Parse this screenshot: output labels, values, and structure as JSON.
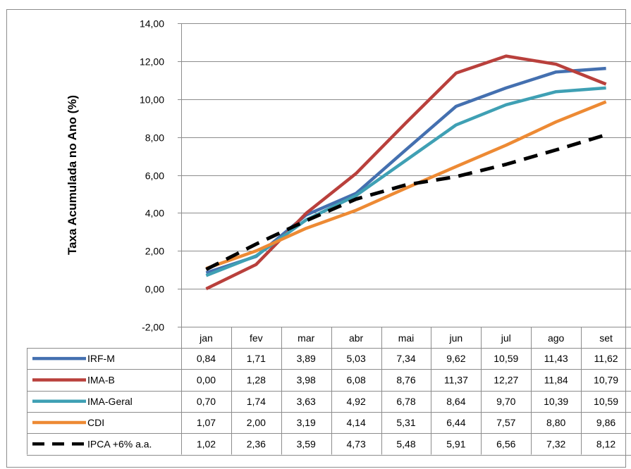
{
  "chart_data": {
    "type": "line",
    "title": "",
    "xlabel": "",
    "ylabel": "Taxa Acumulada no Ano (%)",
    "ylim": [
      -2,
      14
    ],
    "y_ticks": [
      "14,00",
      "12,00",
      "10,00",
      "8,00",
      "6,00",
      "4,00",
      "2,00",
      "0,00",
      "-2,00"
    ],
    "y_tick_values": [
      14,
      12,
      10,
      8,
      6,
      4,
      2,
      0,
      -2
    ],
    "grid": true,
    "legend": "data-table-below",
    "categories": [
      "jan",
      "fev",
      "mar",
      "abr",
      "mai",
      "jun",
      "jul",
      "ago",
      "set"
    ],
    "series": [
      {
        "name": "IRF-M",
        "color": "#4470B0",
        "dashed": false,
        "values": [
          0.84,
          1.71,
          3.89,
          5.03,
          7.34,
          9.62,
          10.59,
          11.43,
          11.62
        ],
        "labels": [
          "0,84",
          "1,71",
          "3,89",
          "5,03",
          "7,34",
          "9,62",
          "10,59",
          "11,43",
          "11,62"
        ]
      },
      {
        "name": "IMA-B",
        "color": "#B9403C",
        "dashed": false,
        "values": [
          0.0,
          1.28,
          3.98,
          6.08,
          8.76,
          11.37,
          12.27,
          11.84,
          10.79
        ],
        "labels": [
          "0,00",
          "1,28",
          "3,98",
          "6,08",
          "8,76",
          "11,37",
          "12,27",
          "11,84",
          "10,79"
        ]
      },
      {
        "name": "IMA-Geral",
        "color": "#3FA0B4",
        "dashed": false,
        "values": [
          0.7,
          1.74,
          3.63,
          4.92,
          6.78,
          8.64,
          9.7,
          10.39,
          10.59
        ],
        "labels": [
          "0,70",
          "1,74",
          "3,63",
          "4,92",
          "6,78",
          "8,64",
          "9,70",
          "10,39",
          "10,59"
        ]
      },
      {
        "name": "CDI",
        "color": "#ED8A34",
        "dashed": false,
        "values": [
          1.07,
          2.0,
          3.19,
          4.14,
          5.31,
          6.44,
          7.57,
          8.8,
          9.86
        ],
        "labels": [
          "1,07",
          "2,00",
          "3,19",
          "4,14",
          "5,31",
          "6,44",
          "7,57",
          "8,80",
          "9,86"
        ]
      },
      {
        "name": "IPCA +6% a.a.",
        "color": "#000000",
        "dashed": true,
        "values": [
          1.02,
          2.36,
          3.59,
          4.73,
          5.48,
          5.91,
          6.56,
          7.32,
          8.12
        ],
        "labels": [
          "1,02",
          "2,36",
          "3,59",
          "4,73",
          "5,48",
          "5,91",
          "6,56",
          "7,32",
          "8,12"
        ]
      }
    ]
  }
}
